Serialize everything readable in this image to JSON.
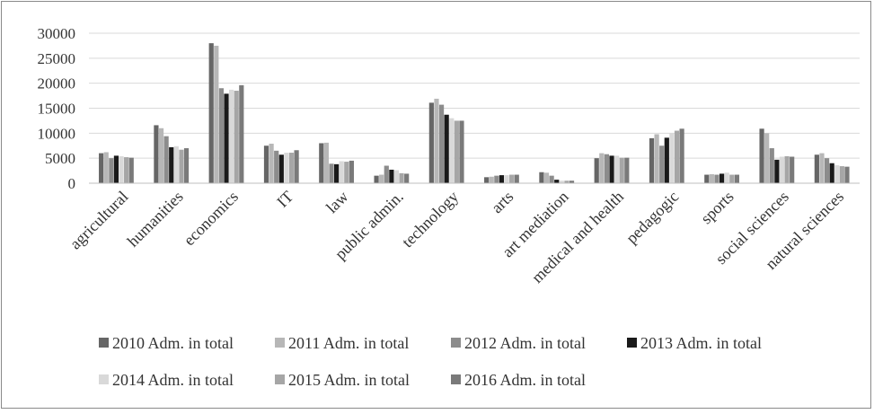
{
  "chart_data": {
    "type": "bar",
    "title": "",
    "xlabel": "",
    "ylabel": "",
    "ylim": [
      0,
      30000
    ],
    "yticks": [
      0,
      5000,
      10000,
      15000,
      20000,
      25000,
      30000
    ],
    "ytick_labels": [
      "0",
      "5000",
      "10000",
      "15000",
      "20000",
      "25000",
      "30000"
    ],
    "grid": true,
    "legend_position": "bottom",
    "categories": [
      "agricultural",
      "humanities",
      "economics",
      "IT",
      "law",
      "public admin.",
      "technology",
      "arts",
      "art mediation",
      "medical and health",
      "pedagogic",
      "sports",
      "social sciences",
      "natural sciences"
    ],
    "series": [
      {
        "name": "2010 Adm. in total",
        "color": "#666666",
        "values": [
          6000,
          11600,
          28000,
          7500,
          8000,
          1500,
          16100,
          1200,
          2200,
          5000,
          9000,
          1700,
          10900,
          5700
        ]
      },
      {
        "name": "2011 Adm. in total",
        "color": "#b7b7b7",
        "values": [
          6200,
          11000,
          27500,
          7900,
          8100,
          1700,
          16900,
          1300,
          2100,
          6000,
          9800,
          1800,
          10000,
          6000
        ]
      },
      {
        "name": "2012 Adm. in total",
        "color": "#8c8c8c",
        "values": [
          5000,
          9400,
          19000,
          6500,
          3900,
          3500,
          15700,
          1500,
          1500,
          5800,
          7500,
          1700,
          7000,
          5000
        ]
      },
      {
        "name": "2013 Adm. in total",
        "color": "#1a1a1a",
        "values": [
          5500,
          7200,
          17900,
          5700,
          3800,
          2700,
          13700,
          1600,
          700,
          5500,
          9100,
          1900,
          4700,
          4000
        ]
      },
      {
        "name": "2014 Adm. in total",
        "color": "#d9d9d9",
        "values": [
          5400,
          7400,
          18700,
          6100,
          4400,
          2600,
          13000,
          1600,
          500,
          5500,
          10000,
          2100,
          5300,
          3600
        ]
      },
      {
        "name": "2015 Adm. in total",
        "color": "#a6a6a6",
        "values": [
          5200,
          6700,
          18500,
          6100,
          4300,
          2000,
          12500,
          1700,
          500,
          5100,
          10500,
          1700,
          5400,
          3400
        ]
      },
      {
        "name": "2016 Adm. in total",
        "color": "#7a7a7a",
        "values": [
          5100,
          7000,
          19600,
          6600,
          4500,
          1900,
          12500,
          1700,
          500,
          5100,
          10900,
          1700,
          5300,
          3300
        ]
      }
    ]
  }
}
